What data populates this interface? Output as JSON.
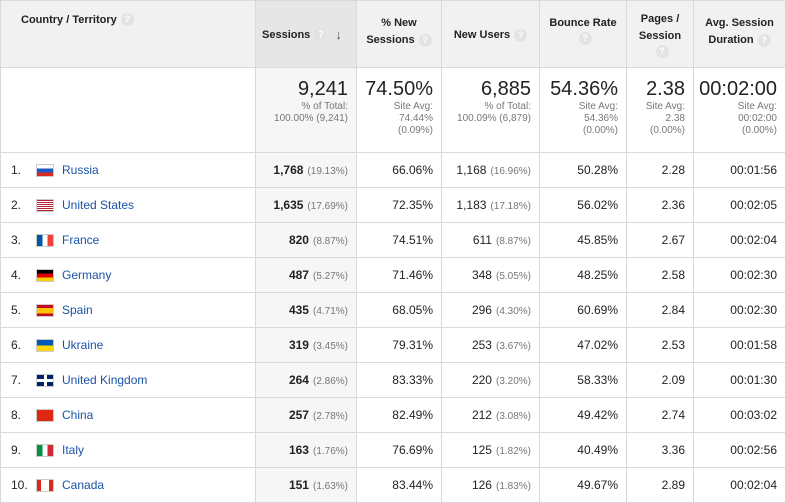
{
  "headers": {
    "country": "Country / Territory",
    "sessions": "Sessions",
    "new_sessions": [
      "% New",
      "Sessions"
    ],
    "new_users": "New Users",
    "bounce": "Bounce Rate",
    "pages": [
      "Pages /",
      "Session"
    ],
    "duration": [
      "Avg. Session",
      "Duration"
    ],
    "help": "?",
    "sort_arrow": "↓"
  },
  "totals": {
    "sessions": {
      "big": "9,241",
      "l1": "% of Total:",
      "l2": "100.00% (9,241)"
    },
    "new_sessions": {
      "big": "74.50%",
      "l1": "Site Avg:",
      "l2": "74.44%",
      "l3": "(0.09%)"
    },
    "new_users": {
      "big": "6,885",
      "l1": "% of Total:",
      "l2": "100.09% (6,879)"
    },
    "bounce": {
      "big": "54.36%",
      "l1": "Site Avg:",
      "l2": "54.36%",
      "l3": "(0.00%)"
    },
    "pages": {
      "big": "2.38",
      "l1": "Site Avg:",
      "l2": "2.38",
      "l3": "(0.00%)"
    },
    "duration": {
      "big": "00:02:00",
      "l1": "Site Avg:",
      "l2": "00:02:00",
      "l3": "(0.00%)"
    }
  },
  "rows": [
    {
      "idx": "1.",
      "flag": "ru",
      "country": "Russia",
      "sessions": "1,768",
      "sessions_pct": "(19.13%)",
      "new_sessions": "66.06%",
      "new_users": "1,168",
      "new_users_pct": "(16.96%)",
      "bounce": "50.28%",
      "pages": "2.28",
      "duration": "00:01:56"
    },
    {
      "idx": "2.",
      "flag": "us",
      "country": "United States",
      "sessions": "1,635",
      "sessions_pct": "(17.69%)",
      "new_sessions": "72.35%",
      "new_users": "1,183",
      "new_users_pct": "(17.18%)",
      "bounce": "56.02%",
      "pages": "2.36",
      "duration": "00:02:05"
    },
    {
      "idx": "3.",
      "flag": "fr",
      "country": "France",
      "sessions": "820",
      "sessions_pct": "(8.87%)",
      "new_sessions": "74.51%",
      "new_users": "611",
      "new_users_pct": "(8.87%)",
      "bounce": "45.85%",
      "pages": "2.67",
      "duration": "00:02:04"
    },
    {
      "idx": "4.",
      "flag": "de",
      "country": "Germany",
      "sessions": "487",
      "sessions_pct": "(5.27%)",
      "new_sessions": "71.46%",
      "new_users": "348",
      "new_users_pct": "(5.05%)",
      "bounce": "48.25%",
      "pages": "2.58",
      "duration": "00:02:30"
    },
    {
      "idx": "5.",
      "flag": "es",
      "country": "Spain",
      "sessions": "435",
      "sessions_pct": "(4.71%)",
      "new_sessions": "68.05%",
      "new_users": "296",
      "new_users_pct": "(4.30%)",
      "bounce": "60.69%",
      "pages": "2.84",
      "duration": "00:02:30"
    },
    {
      "idx": "6.",
      "flag": "ua",
      "country": "Ukraine",
      "sessions": "319",
      "sessions_pct": "(3.45%)",
      "new_sessions": "79.31%",
      "new_users": "253",
      "new_users_pct": "(3.67%)",
      "bounce": "47.02%",
      "pages": "2.53",
      "duration": "00:01:58"
    },
    {
      "idx": "7.",
      "flag": "gb",
      "country": "United Kingdom",
      "sessions": "264",
      "sessions_pct": "(2.86%)",
      "new_sessions": "83.33%",
      "new_users": "220",
      "new_users_pct": "(3.20%)",
      "bounce": "58.33%",
      "pages": "2.09",
      "duration": "00:01:30"
    },
    {
      "idx": "8.",
      "flag": "cn",
      "country": "China",
      "sessions": "257",
      "sessions_pct": "(2.78%)",
      "new_sessions": "82.49%",
      "new_users": "212",
      "new_users_pct": "(3.08%)",
      "bounce": "49.42%",
      "pages": "2.74",
      "duration": "00:03:02"
    },
    {
      "idx": "9.",
      "flag": "it",
      "country": "Italy",
      "sessions": "163",
      "sessions_pct": "(1.76%)",
      "new_sessions": "76.69%",
      "new_users": "125",
      "new_users_pct": "(1.82%)",
      "bounce": "40.49%",
      "pages": "3.36",
      "duration": "00:02:56"
    },
    {
      "idx": "10.",
      "flag": "ca",
      "country": "Canada",
      "sessions": "151",
      "sessions_pct": "(1.63%)",
      "new_sessions": "83.44%",
      "new_users": "126",
      "new_users_pct": "(1.83%)",
      "bounce": "49.67%",
      "pages": "2.89",
      "duration": "00:02:04"
    }
  ]
}
